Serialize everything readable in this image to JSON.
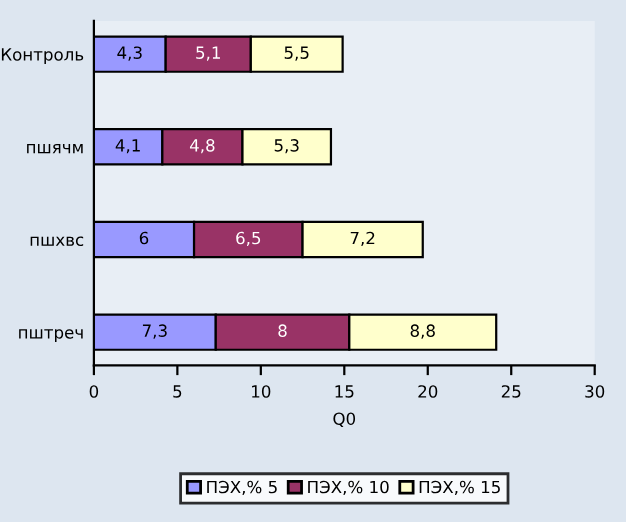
{
  "chart_data": {
    "type": "bar",
    "orientation": "horizontal",
    "stacked": true,
    "categories": [
      "Контроль",
      "пшячм",
      "пшхвс",
      "пштреч"
    ],
    "xlabel": "Q0",
    "xlim": [
      0,
      30
    ],
    "xticks": [
      0,
      5,
      10,
      15,
      20,
      25,
      30
    ],
    "grid": false,
    "legend": "bottom",
    "series": [
      {
        "name": "ПЭХ,% 5",
        "color": "#9999ff",
        "values": [
          4.3,
          4.1,
          6,
          7.3
        ],
        "value_labels": [
          "4,3",
          "4,1",
          "6",
          "7,3"
        ]
      },
      {
        "name": "ПЭХ,% 10",
        "color": "#993366",
        "values": [
          5.1,
          4.8,
          6.5,
          8
        ],
        "value_labels": [
          "5,1",
          "4,8",
          "6,5",
          "8"
        ]
      },
      {
        "name": "ПЭХ,% 15",
        "color": "#ffffcc",
        "values": [
          5.5,
          5.3,
          7.2,
          8.8
        ],
        "value_labels": [
          "5,5",
          "5,3",
          "7,2",
          "8,8"
        ]
      }
    ]
  }
}
